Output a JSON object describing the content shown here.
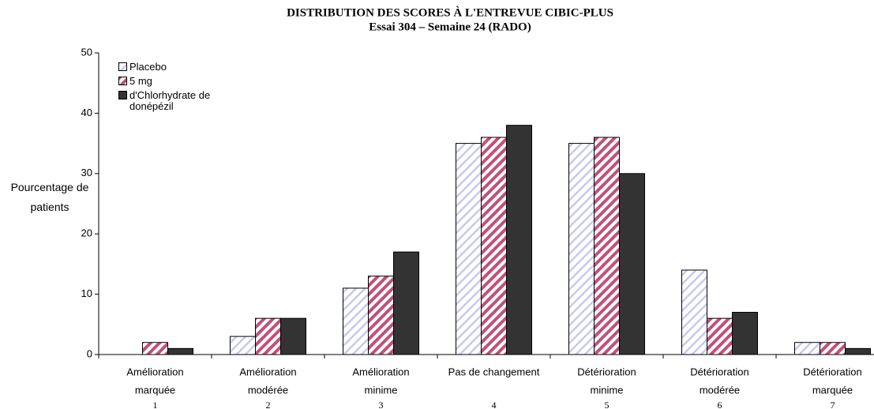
{
  "chart_data": {
    "type": "bar",
    "title": "DISTRIBUTION DES SCORES À L'ENTREVUE CIBIC-PLUS",
    "subtitle": "Essai 304 – Semaine 24 (RADO)",
    "y_label": "Pourcentage de patients",
    "categories": [
      [
        "Amélioration",
        "marquée"
      ],
      [
        "Amélioration",
        "modérée"
      ],
      [
        "Amélioration",
        "minime"
      ],
      [
        "Pas de changement"
      ],
      [
        "Détérioration",
        "minime"
      ],
      [
        "Détérioration",
        "modérée"
      ],
      [
        "Détérioration",
        "marquée"
      ]
    ],
    "category_codes": [
      "1",
      "2",
      "3",
      "4",
      "5",
      "6",
      "7"
    ],
    "series": [
      {
        "name": "Placebo",
        "color": "#c8c8f0",
        "pattern": "light-hatch",
        "values": [
          0,
          3,
          11,
          35,
          35,
          14,
          2
        ]
      },
      {
        "name": "5 mg",
        "color": "#c0507a",
        "pattern": "hatch",
        "values": [
          2,
          6,
          13,
          36,
          36,
          6,
          2
        ]
      },
      {
        "name": "d'Chlorhydrate de donépézil",
        "color": "#333333",
        "pattern": "solid",
        "values": [
          1,
          6,
          17,
          38,
          30,
          7,
          1
        ]
      }
    ],
    "ylim": [
      0,
      50
    ],
    "yticks": [
      0,
      10,
      20,
      30,
      40,
      50
    ]
  }
}
